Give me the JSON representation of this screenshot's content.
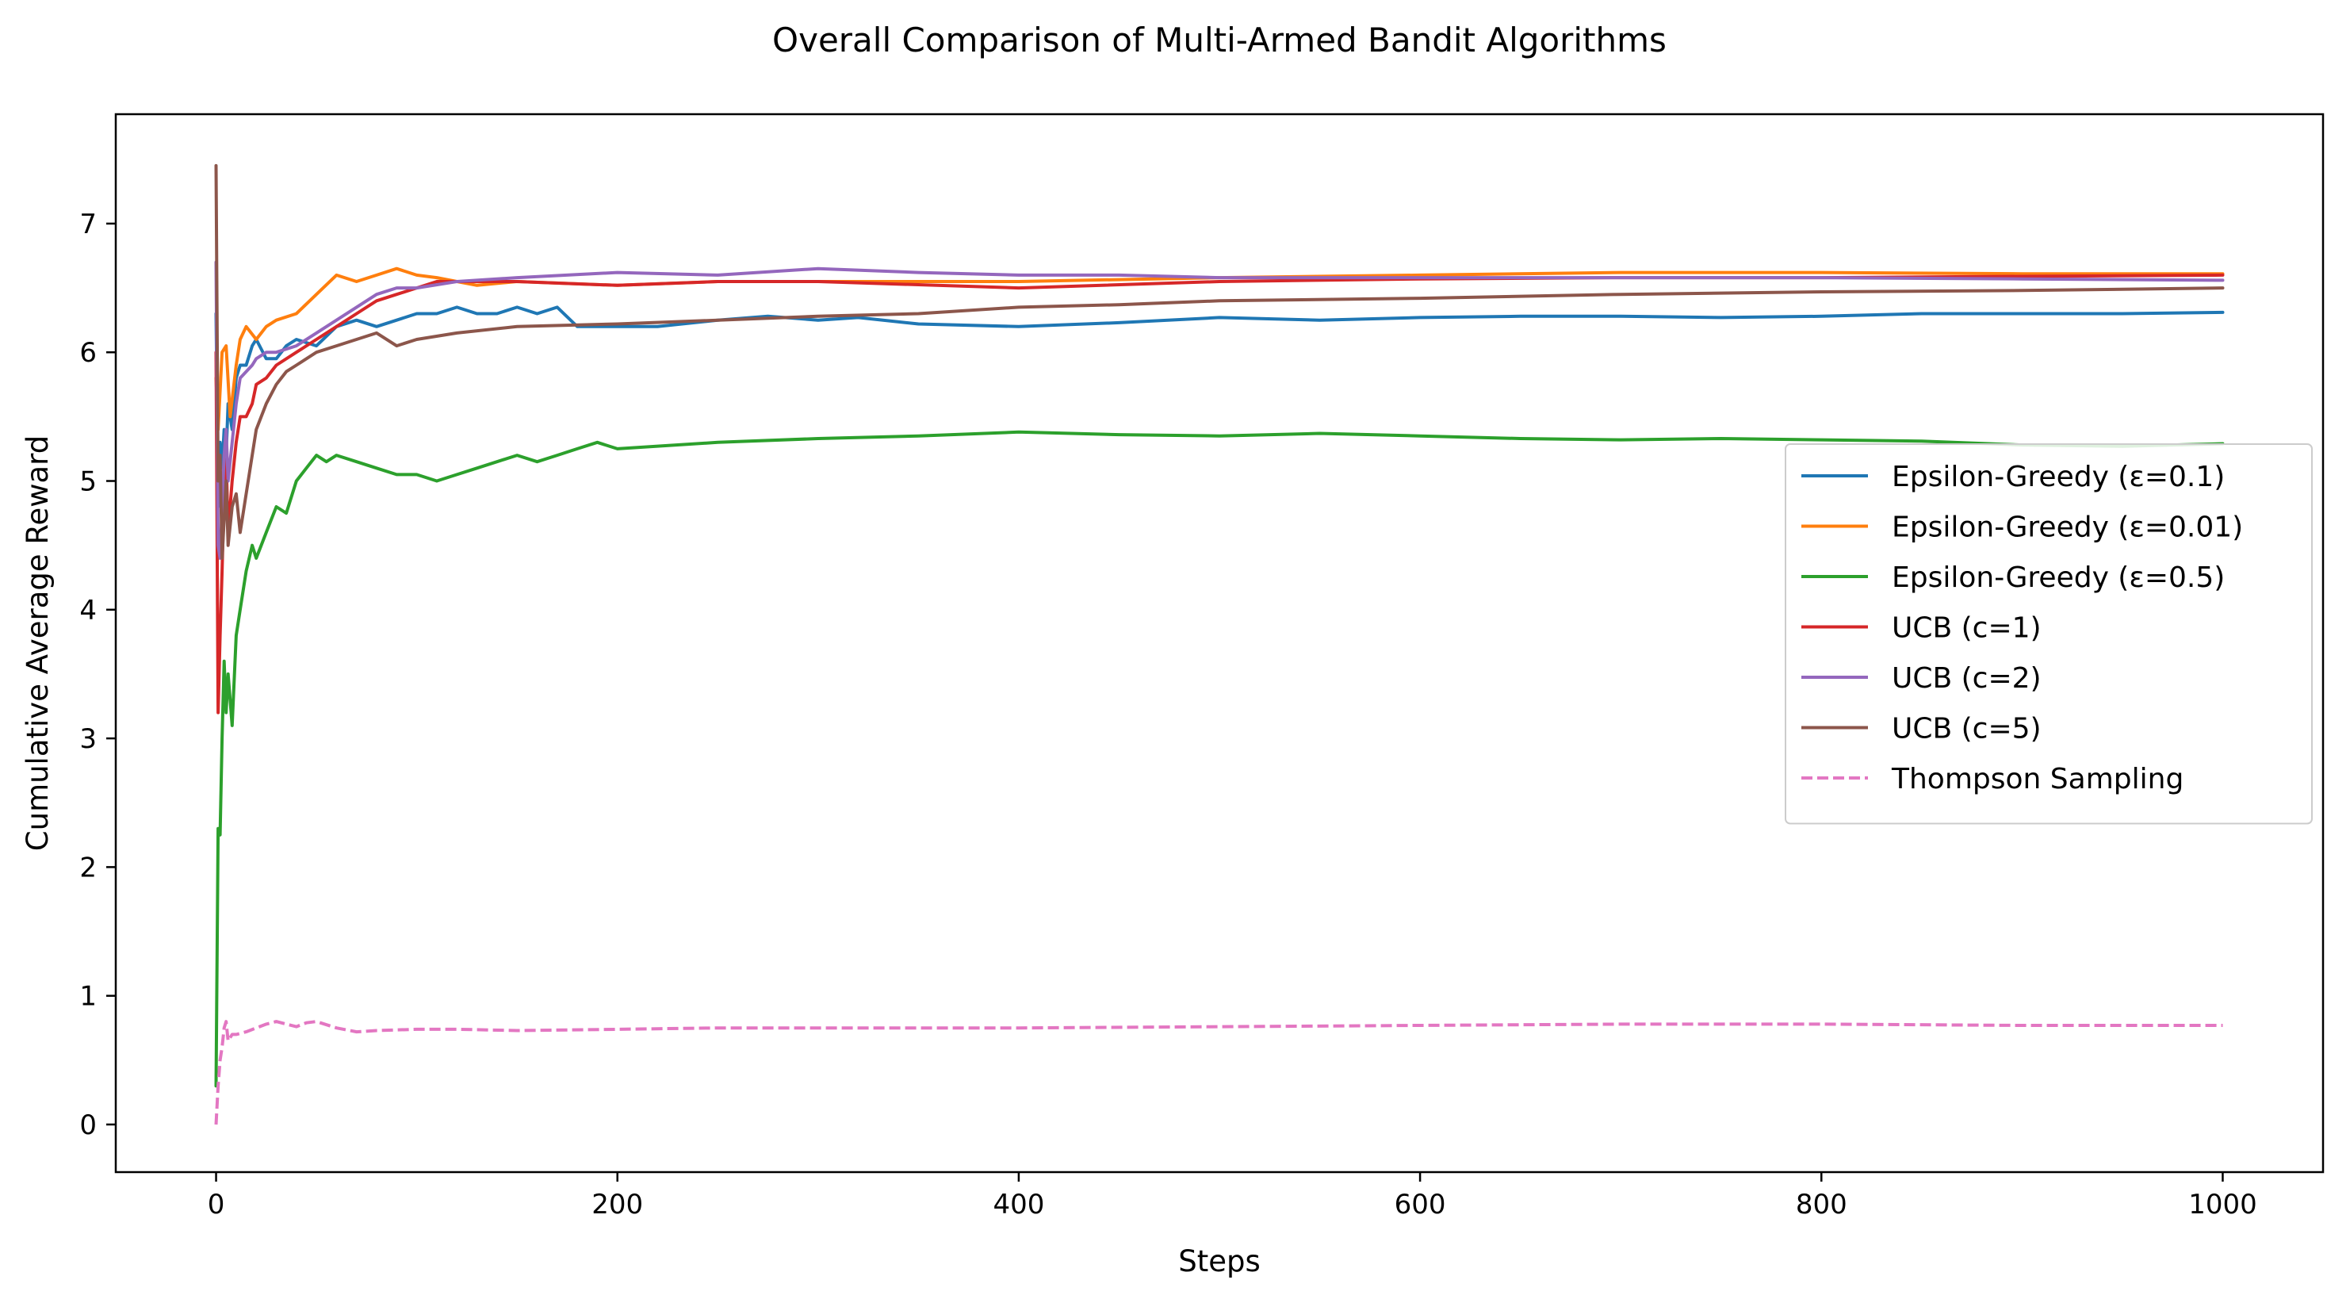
{
  "chart_data": {
    "type": "line",
    "title": "Overall Comparison of Multi-Armed Bandit Algorithms",
    "xlabel": "Steps",
    "ylabel": "Cumulative Average Reward",
    "xlim": [
      -50,
      1050
    ],
    "ylim": [
      -0.37,
      7.85
    ],
    "xticks": [
      0,
      200,
      400,
      600,
      800,
      1000
    ],
    "yticks": [
      0,
      1,
      2,
      3,
      4,
      5,
      6,
      7
    ],
    "grid": false,
    "legend_position": "center-right",
    "series": [
      {
        "name": "Epsilon-Greedy (ε=0.1)",
        "color": "#1f77b4",
        "dash": "solid",
        "x": [
          0,
          1,
          2,
          3,
          4,
          5,
          6,
          8,
          10,
          12,
          15,
          18,
          20,
          25,
          30,
          35,
          40,
          50,
          60,
          70,
          80,
          90,
          100,
          110,
          120,
          130,
          140,
          150,
          160,
          170,
          180,
          190,
          200,
          220,
          250,
          275,
          300,
          320,
          350,
          400,
          450,
          500,
          550,
          600,
          650,
          700,
          750,
          800,
          850,
          900,
          950,
          1000
        ],
        "y": [
          6.3,
          4.8,
          5.3,
          5.1,
          5.4,
          5.2,
          5.6,
          5.4,
          5.8,
          5.9,
          5.9,
          6.05,
          6.1,
          5.95,
          5.95,
          6.05,
          6.1,
          6.05,
          6.2,
          6.25,
          6.2,
          6.25,
          6.3,
          6.3,
          6.35,
          6.3,
          6.3,
          6.35,
          6.3,
          6.35,
          6.2,
          6.2,
          6.2,
          6.2,
          6.25,
          6.28,
          6.25,
          6.27,
          6.22,
          6.2,
          6.23,
          6.27,
          6.25,
          6.27,
          6.28,
          6.28,
          6.27,
          6.28,
          6.3,
          6.3,
          6.3,
          6.31
        ]
      },
      {
        "name": "Epsilon-Greedy (ε=0.01)",
        "color": "#ff7f0e",
        "dash": "solid",
        "x": [
          0,
          1,
          3,
          5,
          7,
          10,
          12,
          15,
          20,
          25,
          30,
          40,
          50,
          60,
          70,
          80,
          90,
          100,
          110,
          120,
          130,
          150,
          200,
          250,
          300,
          400,
          500,
          600,
          700,
          800,
          900,
          1000
        ],
        "y": [
          5.8,
          5.4,
          6.0,
          6.05,
          5.5,
          5.9,
          6.1,
          6.2,
          6.1,
          6.2,
          6.25,
          6.3,
          6.45,
          6.6,
          6.55,
          6.6,
          6.65,
          6.6,
          6.58,
          6.55,
          6.52,
          6.55,
          6.52,
          6.55,
          6.55,
          6.55,
          6.58,
          6.6,
          6.62,
          6.62,
          6.61,
          6.61
        ]
      },
      {
        "name": "Epsilon-Greedy (ε=0.5)",
        "color": "#2ca02c",
        "dash": "solid",
        "x": [
          0,
          1,
          2,
          3,
          4,
          5,
          6,
          8,
          10,
          12,
          15,
          18,
          20,
          25,
          30,
          35,
          40,
          45,
          50,
          55,
          60,
          70,
          80,
          90,
          100,
          110,
          120,
          130,
          140,
          150,
          160,
          170,
          180,
          190,
          200,
          250,
          300,
          350,
          400,
          450,
          500,
          550,
          600,
          650,
          700,
          750,
          800,
          850,
          900,
          950,
          1000
        ],
        "y": [
          0.3,
          2.3,
          2.25,
          3.0,
          3.6,
          3.2,
          3.5,
          3.1,
          3.8,
          4.0,
          4.3,
          4.5,
          4.4,
          4.6,
          4.8,
          4.75,
          5.0,
          5.1,
          5.2,
          5.15,
          5.2,
          5.15,
          5.1,
          5.05,
          5.05,
          5.0,
          5.05,
          5.1,
          5.15,
          5.2,
          5.15,
          5.2,
          5.25,
          5.3,
          5.25,
          5.3,
          5.33,
          5.35,
          5.38,
          5.36,
          5.35,
          5.37,
          5.35,
          5.33,
          5.32,
          5.33,
          5.32,
          5.31,
          5.28,
          5.27,
          5.29
        ]
      },
      {
        "name": "UCB (c=1)",
        "color": "#d62728",
        "dash": "solid",
        "x": [
          0,
          1,
          2,
          3,
          4,
          5,
          6,
          8,
          10,
          12,
          15,
          18,
          20,
          25,
          30,
          40,
          50,
          60,
          70,
          80,
          90,
          100,
          110,
          120,
          150,
          200,
          250,
          300,
          400,
          500,
          600,
          700,
          800,
          900,
          1000
        ],
        "y": [
          6.0,
          3.2,
          3.8,
          4.3,
          4.9,
          5.2,
          4.6,
          5.0,
          5.3,
          5.5,
          5.5,
          5.6,
          5.75,
          5.8,
          5.9,
          6.0,
          6.1,
          6.2,
          6.3,
          6.4,
          6.45,
          6.5,
          6.55,
          6.55,
          6.55,
          6.52,
          6.55,
          6.55,
          6.5,
          6.55,
          6.57,
          6.58,
          6.58,
          6.59,
          6.6
        ]
      },
      {
        "name": "UCB (c=2)",
        "color": "#9467bd",
        "dash": "solid",
        "x": [
          0,
          1,
          2,
          3,
          4,
          5,
          6,
          8,
          10,
          12,
          15,
          18,
          20,
          25,
          30,
          40,
          50,
          60,
          70,
          80,
          90,
          100,
          120,
          150,
          200,
          250,
          300,
          350,
          400,
          450,
          500,
          550,
          600,
          700,
          800,
          900,
          1000
        ],
        "y": [
          6.7,
          4.5,
          4.4,
          4.8,
          5.2,
          5.4,
          5.0,
          5.3,
          5.6,
          5.8,
          5.85,
          5.9,
          5.95,
          6.0,
          6.0,
          6.05,
          6.15,
          6.25,
          6.35,
          6.45,
          6.5,
          6.5,
          6.55,
          6.58,
          6.62,
          6.6,
          6.65,
          6.62,
          6.6,
          6.6,
          6.58,
          6.58,
          6.58,
          6.58,
          6.58,
          6.57,
          6.56
        ]
      },
      {
        "name": "UCB (c=5)",
        "color": "#8c564b",
        "dash": "solid",
        "x": [
          0,
          1,
          2,
          3,
          4,
          5,
          6,
          8,
          10,
          12,
          15,
          18,
          20,
          25,
          30,
          35,
          40,
          50,
          60,
          70,
          80,
          90,
          100,
          120,
          150,
          200,
          250,
          300,
          350,
          400,
          450,
          500,
          600,
          700,
          800,
          900,
          1000
        ],
        "y": [
          7.45,
          5.0,
          5.2,
          4.4,
          4.7,
          5.0,
          4.5,
          4.8,
          4.9,
          4.6,
          4.9,
          5.2,
          5.4,
          5.6,
          5.75,
          5.85,
          5.9,
          6.0,
          6.05,
          6.1,
          6.15,
          6.05,
          6.1,
          6.15,
          6.2,
          6.22,
          6.25,
          6.28,
          6.3,
          6.35,
          6.37,
          6.4,
          6.42,
          6.45,
          6.47,
          6.48,
          6.5
        ]
      },
      {
        "name": "Thompson Sampling",
        "color": "#e377c2",
        "dash": "dashed",
        "x": [
          0,
          1,
          2,
          3,
          4,
          5,
          6,
          8,
          10,
          15,
          20,
          25,
          30,
          35,
          40,
          45,
          50,
          60,
          70,
          80,
          100,
          120,
          150,
          200,
          250,
          300,
          400,
          500,
          600,
          700,
          800,
          900,
          1000
        ],
        "y": [
          0.0,
          0.3,
          0.5,
          0.6,
          0.75,
          0.8,
          0.65,
          0.7,
          0.7,
          0.72,
          0.75,
          0.78,
          0.8,
          0.78,
          0.76,
          0.79,
          0.8,
          0.75,
          0.72,
          0.73,
          0.74,
          0.74,
          0.73,
          0.74,
          0.75,
          0.75,
          0.75,
          0.76,
          0.77,
          0.78,
          0.78,
          0.77,
          0.77
        ]
      }
    ]
  }
}
